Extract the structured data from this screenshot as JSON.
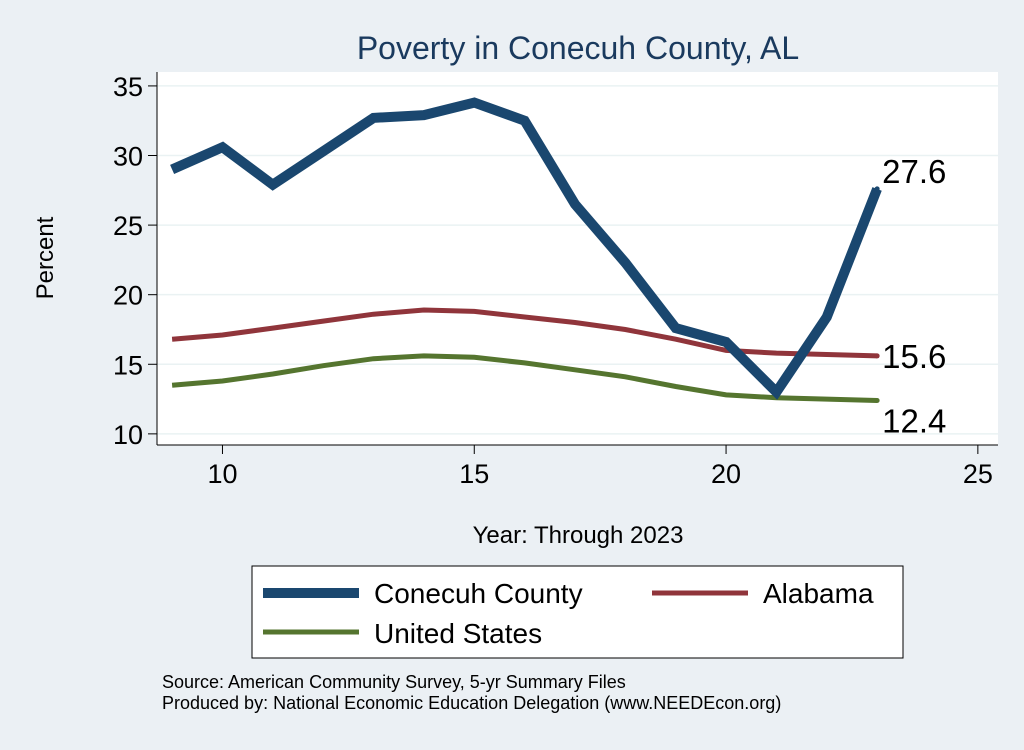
{
  "chart_data": {
    "type": "line",
    "title": "Poverty in Conecuh County, AL",
    "xlabel": "Year: Through 2023",
    "ylabel": "Percent",
    "xlim": [
      8.7,
      25.4
    ],
    "ylim": [
      9.2,
      36
    ],
    "xticks": [
      10,
      15,
      20,
      25
    ],
    "yticks": [
      10,
      15,
      20,
      25,
      30,
      35
    ],
    "grid": true,
    "legend_position": "bottom",
    "series": [
      {
        "name": "Conecuh County",
        "color": "#1a476f",
        "x": [
          9,
          10,
          11,
          12,
          13,
          14,
          15,
          16,
          17,
          18,
          19,
          20,
          21,
          22,
          23
        ],
        "y": [
          29.0,
          30.6,
          27.9,
          30.3,
          32.7,
          32.9,
          33.8,
          32.5,
          26.5,
          22.3,
          17.6,
          16.6,
          13.0,
          18.4,
          27.6
        ],
        "end_label": "27.6"
      },
      {
        "name": "Alabama",
        "color": "#90353b",
        "x": [
          9,
          10,
          11,
          12,
          13,
          14,
          15,
          16,
          17,
          18,
          19,
          20,
          21,
          22,
          23
        ],
        "y": [
          16.8,
          17.1,
          17.6,
          18.1,
          18.6,
          18.9,
          18.8,
          18.4,
          18.0,
          17.5,
          16.8,
          16.0,
          15.8,
          15.7,
          15.6
        ],
        "end_label": "15.6"
      },
      {
        "name": "United States",
        "color": "#55752f",
        "x": [
          9,
          10,
          11,
          12,
          13,
          14,
          15,
          16,
          17,
          18,
          19,
          20,
          21,
          22,
          23
        ],
        "y": [
          13.5,
          13.8,
          14.3,
          14.9,
          15.4,
          15.6,
          15.5,
          15.1,
          14.6,
          14.1,
          13.4,
          12.8,
          12.6,
          12.5,
          12.4
        ],
        "end_label": "12.4"
      }
    ]
  },
  "footer": {
    "source": "Source: American Community Survey, 5-yr Summary Files",
    "produced_by": "Produced by: National Economic Education Delegation (www.NEEDEcon.org)"
  }
}
